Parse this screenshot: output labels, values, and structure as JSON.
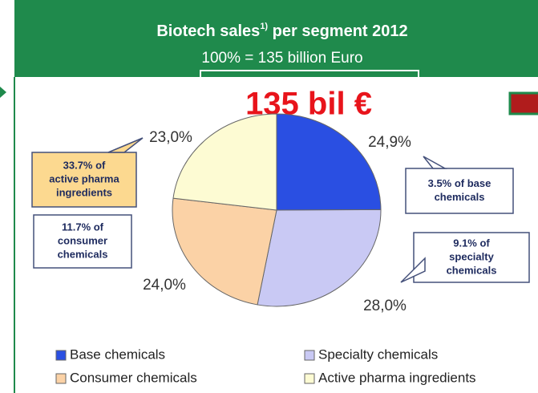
{
  "chart_data": {
    "type": "pie",
    "title": [
      "Biotech sales",
      "1)",
      " per segment 2012"
    ],
    "subtitle": "100% = 135 billion Euro",
    "headline": "135 bil €",
    "categories": [
      "Base chemicals",
      "Specialty chemicals",
      "Consumer chemicals",
      "Active pharma ingredients"
    ],
    "values": [
      24.9,
      28.0,
      24.0,
      23.0
    ],
    "value_labels": [
      "24,9%",
      "28,0%",
      "24,0%",
      "23,0%"
    ],
    "colors": [
      "#2a4fe2",
      "#c9c9f4",
      "#fbd2a6",
      "#fdfbd3"
    ],
    "annotations": [
      [
        "3.5% of base",
        "chemicals"
      ],
      [
        "9.1% of",
        "specialty",
        "chemicals"
      ],
      [
        "11.7% of",
        "consumer",
        "chemicals"
      ],
      [
        "33.7% of",
        "active pharma",
        "ingredients"
      ]
    ],
    "legend": true
  }
}
